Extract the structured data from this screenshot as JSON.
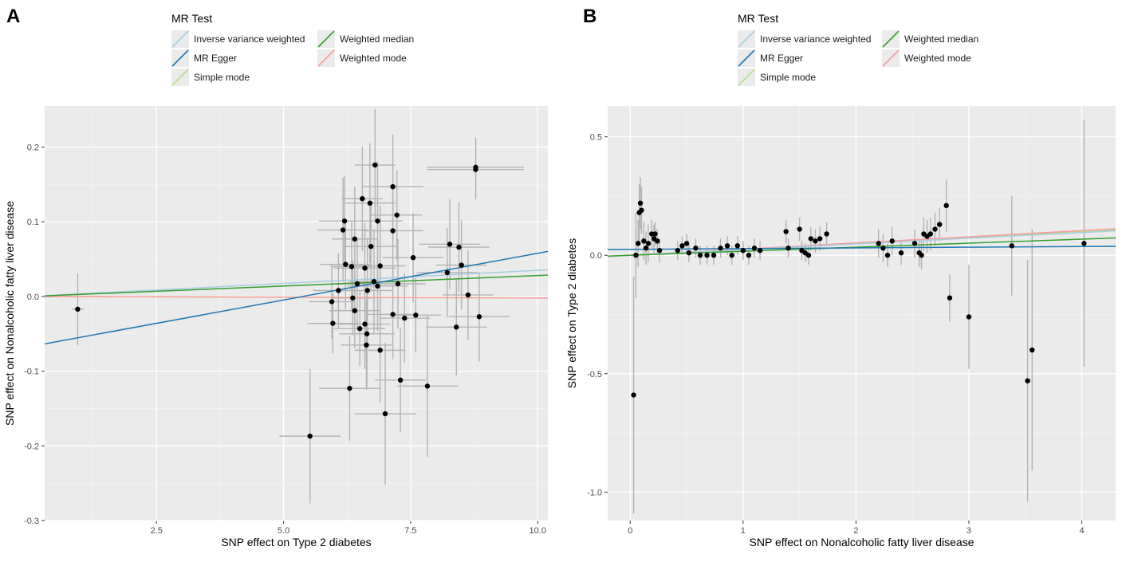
{
  "chart_data": [
    {
      "type": "scatter",
      "panel_label": "A",
      "xlabel": "SNP effect on Type 2 diabetes",
      "ylabel": "SNP effect on Nonalcoholic fatty liver disease",
      "xlim": [
        0.3,
        10.2
      ],
      "ylim": [
        -0.3,
        0.255
      ],
      "xticks": [
        2.5,
        5.0,
        7.5,
        10.0
      ],
      "xtick_labels": [
        "2.5",
        "5.0",
        "7.5",
        "10.0"
      ],
      "yticks": [
        -0.3,
        -0.2,
        -0.1,
        0.0,
        0.1,
        0.2
      ],
      "ytick_labels": [
        "-0.3",
        "-0.2",
        "-0.1",
        "0.0",
        "0.1",
        "0.2"
      ],
      "grid": true,
      "legend": {
        "title": "MR Test",
        "placement": "top",
        "entries": [
          {
            "label": "Inverse variance weighted",
            "color": "#a6cee3"
          },
          {
            "label": "Weighted median",
            "color": "#33a02c"
          },
          {
            "label": "MR Egger",
            "color": "#1f78b4"
          },
          {
            "label": "Weighted mode",
            "color": "#fb9a99"
          },
          {
            "label": "Simple mode",
            "color": "#b2df8a"
          }
        ]
      },
      "lines": [
        {
          "name": "Inverse variance weighted",
          "color": "#a6cee3",
          "intercept": 0.0,
          "slope": 0.0035
        },
        {
          "name": "Weighted median",
          "color": "#33a02c",
          "intercept": 0.0,
          "slope": 0.0028
        },
        {
          "name": "MR Egger",
          "color": "#1f78b4",
          "intercept": -0.0672,
          "slope": 0.0125
        },
        {
          "name": "Weighted mode",
          "color": "#fb9a99",
          "intercept": 0.0,
          "slope": -0.0002
        },
        {
          "name": "Simple mode",
          "color": "#b2df8a",
          "intercept": 0.0,
          "slope": -0.0002
        }
      ],
      "points": [
        {
          "x": 0.95,
          "y": -0.017,
          "xe": 0.12,
          "ye": 0.048
        },
        {
          "x": 5.52,
          "y": -0.187,
          "xe": 0.6,
          "ye": 0.09
        },
        {
          "x": 5.95,
          "y": -0.007,
          "xe": 0.45,
          "ye": 0.05
        },
        {
          "x": 5.97,
          "y": -0.036,
          "xe": 0.5,
          "ye": 0.04
        },
        {
          "x": 6.08,
          "y": 0.008,
          "xe": 0.5,
          "ye": 0.05
        },
        {
          "x": 6.17,
          "y": 0.089,
          "xe": 0.5,
          "ye": 0.07
        },
        {
          "x": 6.2,
          "y": 0.101,
          "xe": 0.5,
          "ye": 0.06
        },
        {
          "x": 6.22,
          "y": 0.043,
          "xe": 0.5,
          "ye": 0.06
        },
        {
          "x": 6.3,
          "y": -0.123,
          "xe": 0.6,
          "ye": 0.07
        },
        {
          "x": 6.34,
          "y": 0.04,
          "xe": 0.4,
          "ye": 0.06
        },
        {
          "x": 6.36,
          "y": -0.002,
          "xe": 0.4,
          "ye": 0.05
        },
        {
          "x": 6.4,
          "y": 0.077,
          "xe": 0.45,
          "ye": 0.07
        },
        {
          "x": 6.4,
          "y": -0.019,
          "xe": 0.5,
          "ye": 0.05
        },
        {
          "x": 6.45,
          "y": 0.017,
          "xe": 0.5,
          "ye": 0.06
        },
        {
          "x": 6.5,
          "y": -0.043,
          "xe": 0.5,
          "ye": 0.05
        },
        {
          "x": 6.55,
          "y": 0.131,
          "xe": 0.4,
          "ye": 0.07
        },
        {
          "x": 6.6,
          "y": 0.038,
          "xe": 0.6,
          "ye": 0.06
        },
        {
          "x": 6.6,
          "y": -0.037,
          "xe": 0.5,
          "ye": 0.06
        },
        {
          "x": 6.63,
          "y": -0.065,
          "xe": 0.5,
          "ye": 0.06
        },
        {
          "x": 6.64,
          "y": -0.05,
          "xe": 0.55,
          "ye": 0.07
        },
        {
          "x": 6.65,
          "y": 0.008,
          "xe": 0.5,
          "ye": 0.07
        },
        {
          "x": 6.7,
          "y": 0.125,
          "xe": 0.5,
          "ye": 0.08
        },
        {
          "x": 6.72,
          "y": 0.067,
          "xe": 0.5,
          "ye": 0.06
        },
        {
          "x": 6.78,
          "y": 0.02,
          "xe": 0.5,
          "ye": 0.07
        },
        {
          "x": 6.8,
          "y": 0.176,
          "xe": 0.4,
          "ye": 0.075
        },
        {
          "x": 6.85,
          "y": 0.101,
          "xe": 0.5,
          "ye": 0.08
        },
        {
          "x": 6.85,
          "y": 0.014,
          "xe": 0.6,
          "ye": 0.06
        },
        {
          "x": 6.9,
          "y": -0.072,
          "xe": 0.5,
          "ye": 0.07
        },
        {
          "x": 6.9,
          "y": 0.041,
          "xe": 0.5,
          "ye": 0.08
        },
        {
          "x": 7.0,
          "y": -0.157,
          "xe": 0.6,
          "ye": 0.095
        },
        {
          "x": 7.15,
          "y": 0.147,
          "xe": 0.6,
          "ye": 0.07
        },
        {
          "x": 7.15,
          "y": 0.088,
          "xe": 0.6,
          "ye": 0.07
        },
        {
          "x": 7.15,
          "y": -0.024,
          "xe": 0.5,
          "ye": 0.06
        },
        {
          "x": 7.23,
          "y": 0.109,
          "xe": 0.5,
          "ye": 0.06
        },
        {
          "x": 7.25,
          "y": 0.017,
          "xe": 0.55,
          "ye": 0.06
        },
        {
          "x": 7.3,
          "y": -0.112,
          "xe": 0.5,
          "ye": 0.07
        },
        {
          "x": 7.38,
          "y": -0.029,
          "xe": 0.5,
          "ye": 0.06
        },
        {
          "x": 7.55,
          "y": 0.052,
          "xe": 0.6,
          "ye": 0.06
        },
        {
          "x": 7.6,
          "y": -0.025,
          "xe": 0.5,
          "ye": 0.05
        },
        {
          "x": 7.83,
          "y": -0.12,
          "xe": 0.6,
          "ye": 0.095
        },
        {
          "x": 8.22,
          "y": 0.032,
          "xe": 0.6,
          "ye": 0.06
        },
        {
          "x": 8.27,
          "y": 0.07,
          "xe": 0.6,
          "ye": 0.06
        },
        {
          "x": 8.4,
          "y": -0.041,
          "xe": 0.6,
          "ye": 0.065
        },
        {
          "x": 8.45,
          "y": 0.066,
          "xe": 0.6,
          "ye": 0.06
        },
        {
          "x": 8.5,
          "y": 0.042,
          "xe": 0.5,
          "ye": 0.06
        },
        {
          "x": 8.63,
          "y": 0.002,
          "xe": 0.5,
          "ye": 0.06
        },
        {
          "x": 8.78,
          "y": 0.17,
          "xe": 0.95,
          "ye": 0.04
        },
        {
          "x": 8.78,
          "y": 0.173,
          "xe": 0.95,
          "ye": 0.04
        },
        {
          "x": 8.85,
          "y": -0.027,
          "xe": 0.6,
          "ye": 0.06
        }
      ]
    },
    {
      "type": "scatter",
      "panel_label": "B",
      "xlabel": "SNP effect on Nonalcoholic fatty liver disease",
      "ylabel": "SNP effect on Type 2 diabetes",
      "xlim": [
        -0.2,
        4.3
      ],
      "ylim": [
        -1.12,
        0.63
      ],
      "xticks": [
        0,
        1,
        2,
        3,
        4
      ],
      "xtick_labels": [
        "0",
        "1",
        "2",
        "3",
        "4"
      ],
      "yticks": [
        -1.0,
        -0.5,
        0.0,
        0.5
      ],
      "ytick_labels": [
        "-1.0",
        "-0.5",
        "0.0",
        "0.5"
      ],
      "grid": true,
      "legend": {
        "title": "MR Test",
        "placement": "top",
        "entries": [
          {
            "label": "Inverse variance weighted",
            "color": "#a6cee3"
          },
          {
            "label": "Weighted median",
            "color": "#33a02c"
          },
          {
            "label": "MR Egger",
            "color": "#1f78b4"
          },
          {
            "label": "Weighted mode",
            "color": "#fb9a99"
          },
          {
            "label": "Simple mode",
            "color": "#b2df8a"
          }
        ]
      },
      "lines": [
        {
          "name": "Inverse variance weighted",
          "color": "#a6cee3",
          "intercept": 0.0,
          "slope": 0.024
        },
        {
          "name": "Weighted median",
          "color": "#33a02c",
          "intercept": 0.0,
          "slope": 0.017
        },
        {
          "name": "MR Egger",
          "color": "#1f78b4",
          "intercept": 0.025,
          "slope": 0.003
        },
        {
          "name": "Weighted mode",
          "color": "#fb9a99",
          "intercept": 0.0,
          "slope": 0.026
        },
        {
          "name": "Simple mode",
          "color": "#b2df8a",
          "intercept": 0.0,
          "slope": 0.025
        }
      ],
      "points": [
        {
          "x": 0.03,
          "y": -0.59,
          "xe": 0.01,
          "ye": 0.5
        },
        {
          "x": 0.05,
          "y": 0.0,
          "xe": 0.01,
          "ye": 0.18
        },
        {
          "x": 0.07,
          "y": 0.05,
          "xe": 0.02,
          "ye": 0.1
        },
        {
          "x": 0.08,
          "y": 0.18,
          "xe": 0.02,
          "ye": 0.12
        },
        {
          "x": 0.09,
          "y": 0.22,
          "xe": 0.02,
          "ye": 0.11
        },
        {
          "x": 0.1,
          "y": 0.19,
          "xe": 0.02,
          "ye": 0.1
        },
        {
          "x": 0.12,
          "y": 0.06,
          "xe": 0.02,
          "ye": 0.08
        },
        {
          "x": 0.14,
          "y": 0.03,
          "xe": 0.02,
          "ye": 0.07
        },
        {
          "x": 0.16,
          "y": 0.05,
          "xe": 0.02,
          "ye": 0.08
        },
        {
          "x": 0.19,
          "y": 0.09,
          "xe": 0.02,
          "ye": 0.06
        },
        {
          "x": 0.21,
          "y": 0.07,
          "xe": 0.02,
          "ye": 0.06
        },
        {
          "x": 0.22,
          "y": 0.09,
          "xe": 0.02,
          "ye": 0.05
        },
        {
          "x": 0.24,
          "y": 0.06,
          "xe": 0.02,
          "ye": 0.05
        },
        {
          "x": 0.26,
          "y": 0.02,
          "xe": 0.02,
          "ye": 0.05
        },
        {
          "x": 0.42,
          "y": 0.02,
          "xe": 0.02,
          "ye": 0.04
        },
        {
          "x": 0.46,
          "y": 0.04,
          "xe": 0.02,
          "ye": 0.04
        },
        {
          "x": 0.5,
          "y": 0.05,
          "xe": 0.02,
          "ye": 0.04
        },
        {
          "x": 0.52,
          "y": 0.01,
          "xe": 0.02,
          "ye": 0.04
        },
        {
          "x": 0.58,
          "y": 0.03,
          "xe": 0.02,
          "ye": 0.04
        },
        {
          "x": 0.62,
          "y": 0.0,
          "xe": 0.02,
          "ye": 0.04
        },
        {
          "x": 0.68,
          "y": 0.0,
          "xe": 0.02,
          "ye": 0.04
        },
        {
          "x": 0.74,
          "y": 0.0,
          "xe": 0.02,
          "ye": 0.04
        },
        {
          "x": 0.8,
          "y": 0.03,
          "xe": 0.02,
          "ye": 0.04
        },
        {
          "x": 0.86,
          "y": 0.04,
          "xe": 0.02,
          "ye": 0.04
        },
        {
          "x": 0.9,
          "y": 0.0,
          "xe": 0.02,
          "ye": 0.04
        },
        {
          "x": 0.95,
          "y": 0.04,
          "xe": 0.02,
          "ye": 0.04
        },
        {
          "x": 1.0,
          "y": 0.02,
          "xe": 0.02,
          "ye": 0.04
        },
        {
          "x": 1.05,
          "y": 0.0,
          "xe": 0.02,
          "ye": 0.04
        },
        {
          "x": 1.1,
          "y": 0.03,
          "xe": 0.02,
          "ye": 0.04
        },
        {
          "x": 1.15,
          "y": 0.02,
          "xe": 0.02,
          "ye": 0.04
        },
        {
          "x": 1.38,
          "y": 0.1,
          "xe": 0.02,
          "ye": 0.05
        },
        {
          "x": 1.4,
          "y": 0.03,
          "xe": 0.02,
          "ye": 0.04
        },
        {
          "x": 1.5,
          "y": 0.11,
          "xe": 0.02,
          "ye": 0.05
        },
        {
          "x": 1.52,
          "y": 0.02,
          "xe": 0.02,
          "ye": 0.04
        },
        {
          "x": 1.55,
          "y": 0.01,
          "xe": 0.02,
          "ye": 0.04
        },
        {
          "x": 1.58,
          "y": 0.0,
          "xe": 0.02,
          "ye": 0.04
        },
        {
          "x": 1.6,
          "y": 0.07,
          "xe": 0.02,
          "ye": 0.05
        },
        {
          "x": 1.64,
          "y": 0.06,
          "xe": 0.02,
          "ye": 0.05
        },
        {
          "x": 1.68,
          "y": 0.07,
          "xe": 0.02,
          "ye": 0.05
        },
        {
          "x": 1.74,
          "y": 0.09,
          "xe": 0.02,
          "ye": 0.05
        },
        {
          "x": 2.2,
          "y": 0.05,
          "xe": 0.02,
          "ye": 0.06
        },
        {
          "x": 2.24,
          "y": 0.03,
          "xe": 0.02,
          "ye": 0.06
        },
        {
          "x": 2.28,
          "y": 0.0,
          "xe": 0.02,
          "ye": 0.05
        },
        {
          "x": 2.32,
          "y": 0.06,
          "xe": 0.02,
          "ye": 0.06
        },
        {
          "x": 2.4,
          "y": 0.01,
          "xe": 0.02,
          "ye": 0.05
        },
        {
          "x": 2.52,
          "y": 0.05,
          "xe": 0.02,
          "ye": 0.06
        },
        {
          "x": 2.56,
          "y": 0.01,
          "xe": 0.02,
          "ye": 0.06
        },
        {
          "x": 2.58,
          "y": 0.0,
          "xe": 0.02,
          "ye": 0.06
        },
        {
          "x": 2.6,
          "y": 0.09,
          "xe": 0.02,
          "ye": 0.07
        },
        {
          "x": 2.63,
          "y": 0.08,
          "xe": 0.02,
          "ye": 0.07
        },
        {
          "x": 2.66,
          "y": 0.09,
          "xe": 0.02,
          "ye": 0.07
        },
        {
          "x": 2.7,
          "y": 0.11,
          "xe": 0.02,
          "ye": 0.07
        },
        {
          "x": 2.74,
          "y": 0.13,
          "xe": 0.02,
          "ye": 0.07
        },
        {
          "x": 2.8,
          "y": 0.21,
          "xe": 0.02,
          "ye": 0.11
        },
        {
          "x": 2.83,
          "y": -0.18,
          "xe": 0.02,
          "ye": 0.1
        },
        {
          "x": 3.0,
          "y": -0.26,
          "xe": 0.02,
          "ye": 0.22
        },
        {
          "x": 3.38,
          "y": 0.04,
          "xe": 0.02,
          "ye": 0.21
        },
        {
          "x": 3.52,
          "y": -0.53,
          "xe": 0.02,
          "ye": 0.51
        },
        {
          "x": 3.56,
          "y": -0.4,
          "xe": 0.02,
          "ye": 0.51
        },
        {
          "x": 4.02,
          "y": 0.05,
          "xe": 0.02,
          "ye": 0.52
        }
      ]
    }
  ]
}
